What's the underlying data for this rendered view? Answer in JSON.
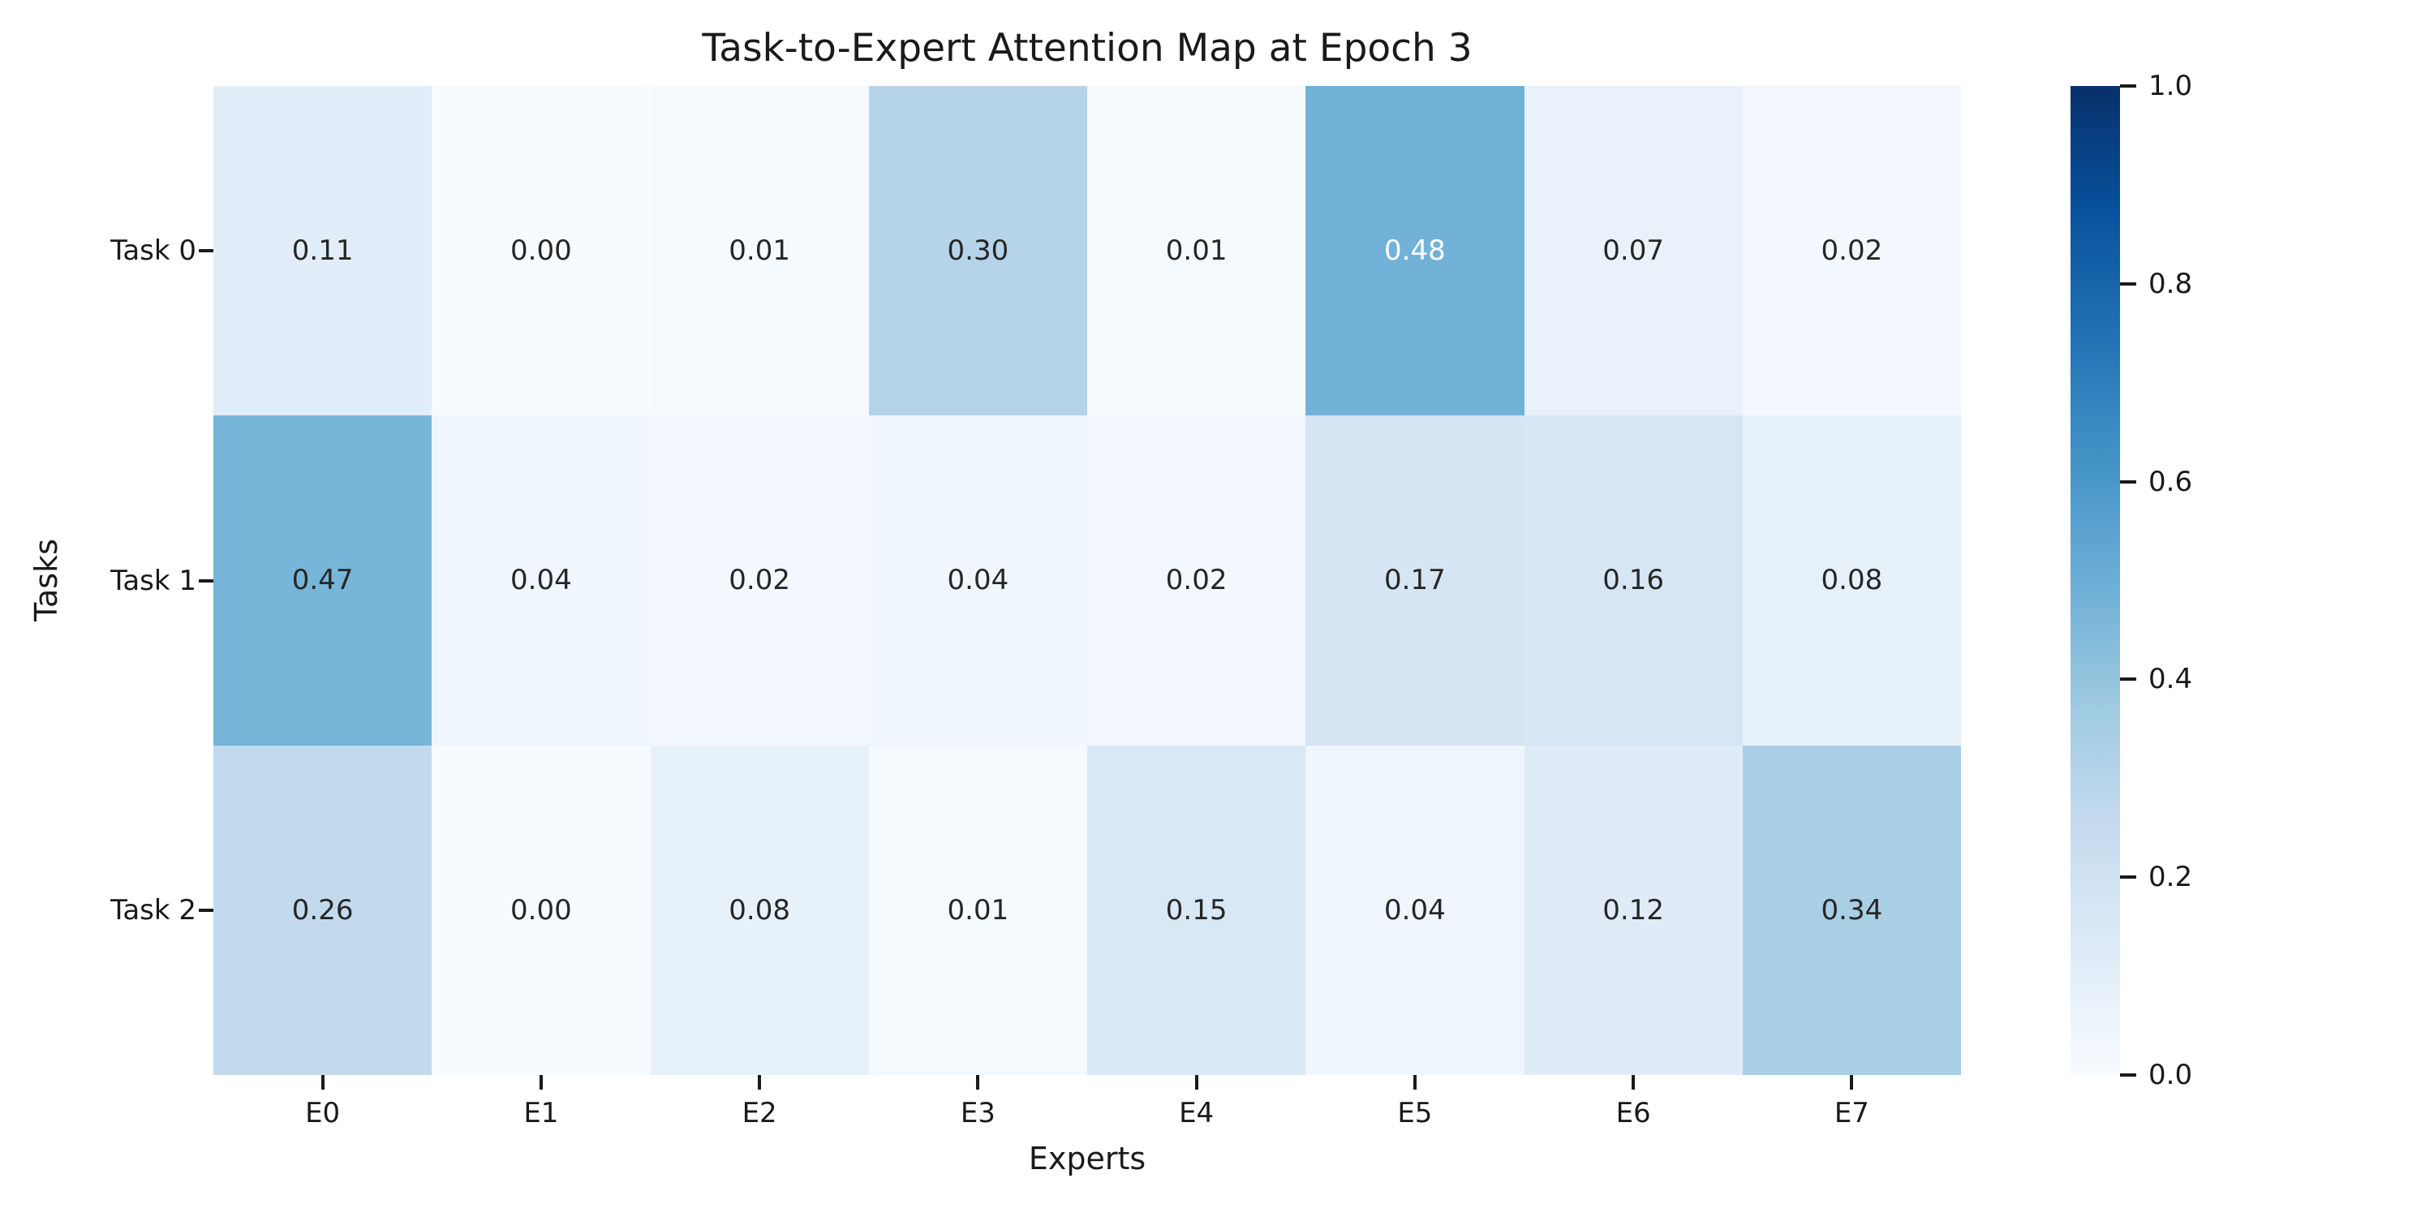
{
  "figure": {
    "background": "#ffffff",
    "text_color": "#1a1a1a",
    "annotation_dark_color": "#262626",
    "annotation_light_color": "#ffffff"
  },
  "chart_data": {
    "type": "heatmap",
    "title": "Task-to-Expert Attention Map at Epoch 3",
    "xlabel": "Experts",
    "ylabel": "Tasks",
    "columns": [
      "E0",
      "E1",
      "E2",
      "E3",
      "E4",
      "E5",
      "E6",
      "E7"
    ],
    "rows": [
      "Task 0",
      "Task 1",
      "Task 2"
    ],
    "values": [
      [
        0.11,
        0.0,
        0.01,
        0.3,
        0.01,
        0.48,
        0.07,
        0.02
      ],
      [
        0.47,
        0.04,
        0.02,
        0.04,
        0.02,
        0.17,
        0.16,
        0.08
      ],
      [
        0.26,
        0.0,
        0.08,
        0.01,
        0.15,
        0.04,
        0.12,
        0.34
      ]
    ],
    "value_format_decimals": 2,
    "grid": false,
    "legend": "none",
    "colormap": "Blues",
    "colormap_stops": [
      {
        "pos": 0.0,
        "color": "#f7fbff"
      },
      {
        "pos": 0.125,
        "color": "#deebf7"
      },
      {
        "pos": 0.25,
        "color": "#c6dbef"
      },
      {
        "pos": 0.375,
        "color": "#9ecae1"
      },
      {
        "pos": 0.5,
        "color": "#6baed6"
      },
      {
        "pos": 0.625,
        "color": "#4292c6"
      },
      {
        "pos": 0.75,
        "color": "#2171b5"
      },
      {
        "pos": 0.875,
        "color": "#08519c"
      },
      {
        "pos": 1.0,
        "color": "#08306b"
      }
    ],
    "cell_colors": [
      [
        "#e1edf8",
        "#f7fbff",
        "#f5fafe",
        "#b6d4e9",
        "#f5fafe",
        "#73b2d8",
        "#e9f2fa",
        "#f3f8fe"
      ],
      [
        "#77b5d9",
        "#eff6fc",
        "#f3f8fe",
        "#eff6fc",
        "#f3f8fe",
        "#d5e5f4",
        "#d7e6f5",
        "#e7f1fa"
      ],
      [
        "#c3daee",
        "#f7fbff",
        "#e7f1fa",
        "#f5fafe",
        "#d9e8f5",
        "#eff6fc",
        "#dfecf7",
        "#a9cfe5"
      ]
    ],
    "cell_text_colors": [
      [
        "#262626",
        "#262626",
        "#262626",
        "#262626",
        "#262626",
        "#ffffff",
        "#262626",
        "#262626"
      ],
      [
        "#262626",
        "#262626",
        "#262626",
        "#262626",
        "#262626",
        "#262626",
        "#262626",
        "#262626"
      ],
      [
        "#262626",
        "#262626",
        "#262626",
        "#262626",
        "#262626",
        "#262626",
        "#262626",
        "#262626"
      ]
    ],
    "colorbar": {
      "min": 0.0,
      "max": 1.0,
      "tick_values": [
        0.0,
        0.2,
        0.4,
        0.6,
        0.8,
        1.0
      ],
      "tick_labels": [
        "0.0",
        "0.2",
        "0.4",
        "0.6",
        "0.8",
        "1.0"
      ],
      "position": "right"
    }
  }
}
